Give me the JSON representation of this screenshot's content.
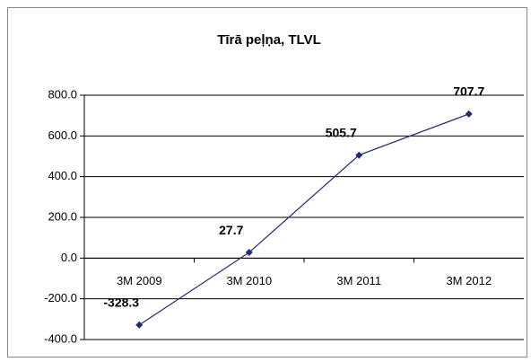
{
  "chart_data": {
    "type": "line",
    "title": "Tīrā peļņa, TLVL",
    "categories": [
      "3M 2009",
      "3M 2010",
      "3M 2011",
      "3M 2012"
    ],
    "series": [
      {
        "name": "Tīrā peļņa",
        "color": "#1f2a78",
        "values": [
          -328.3,
          27.7,
          505.7,
          707.7
        ]
      }
    ],
    "ylim": [
      -400,
      800
    ],
    "yticks": [
      {
        "value": -400,
        "label": "-400.0"
      },
      {
        "value": -200,
        "label": "-200.0"
      },
      {
        "value": 0,
        "label": "0.0"
      },
      {
        "value": 200,
        "label": "200.0"
      },
      {
        "value": 400,
        "label": "400.0"
      },
      {
        "value": 600,
        "label": "600.0"
      },
      {
        "value": 800,
        "label": "800.0"
      }
    ],
    "grid": true,
    "data_labels": true
  }
}
